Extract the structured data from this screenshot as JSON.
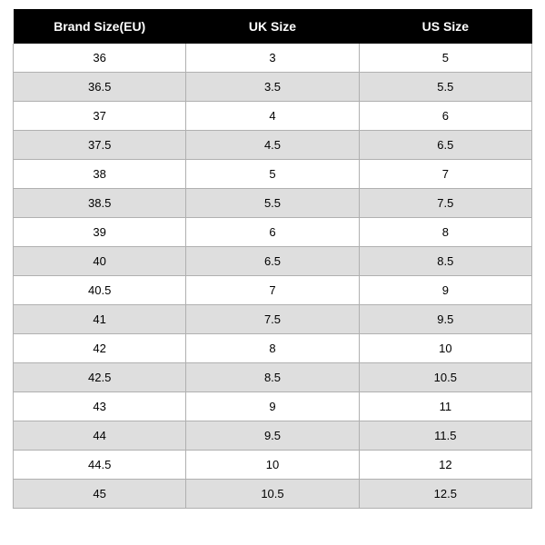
{
  "sizeTable": {
    "type": "table",
    "header_bg": "#000000",
    "header_fg": "#ffffff",
    "row_odd_bg": "#ffffff",
    "row_even_bg": "#dedede",
    "border_color": "#b0b0b0",
    "header_fontsize": 14,
    "cell_fontsize": 13,
    "columns": [
      "Brand Size(EU)",
      "UK Size",
      "US Size"
    ],
    "rows": [
      [
        "36",
        "3",
        "5"
      ],
      [
        "36.5",
        "3.5",
        "5.5"
      ],
      [
        "37",
        "4",
        "6"
      ],
      [
        "37.5",
        "4.5",
        "6.5"
      ],
      [
        "38",
        "5",
        "7"
      ],
      [
        "38.5",
        "5.5",
        "7.5"
      ],
      [
        "39",
        "6",
        "8"
      ],
      [
        "40",
        "6.5",
        "8.5"
      ],
      [
        "40.5",
        "7",
        "9"
      ],
      [
        "41",
        "7.5",
        "9.5"
      ],
      [
        "42",
        "8",
        "10"
      ],
      [
        "42.5",
        "8.5",
        "10.5"
      ],
      [
        "43",
        "9",
        "11"
      ],
      [
        "44",
        "9.5",
        "11.5"
      ],
      [
        "44.5",
        "10",
        "12"
      ],
      [
        "45",
        "10.5",
        "12.5"
      ]
    ]
  }
}
